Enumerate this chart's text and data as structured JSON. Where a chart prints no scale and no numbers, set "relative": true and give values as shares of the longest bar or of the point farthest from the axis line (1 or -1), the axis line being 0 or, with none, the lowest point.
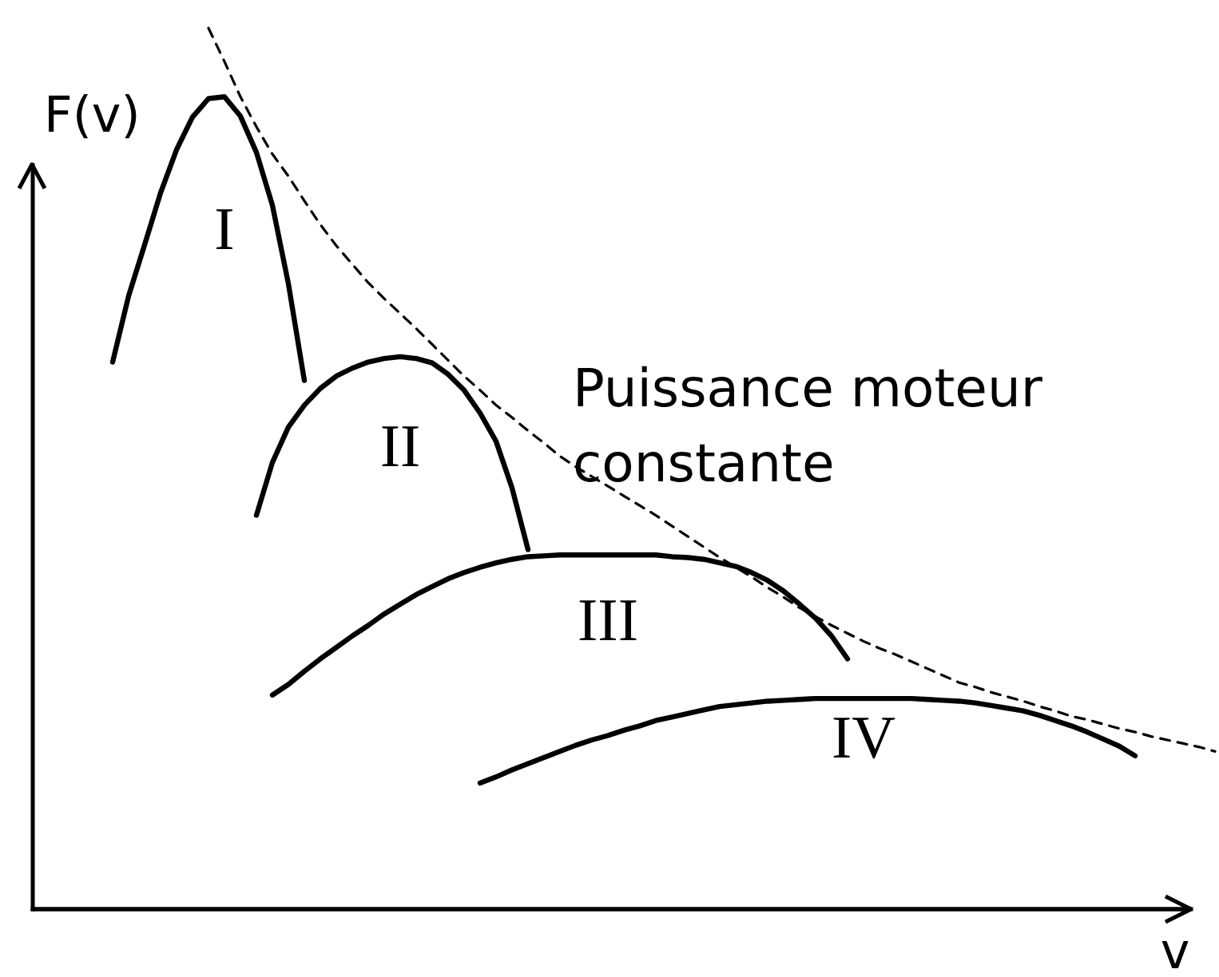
{
  "chart_data": {
    "type": "line",
    "relative": true,
    "xlabel": "v",
    "ylabel": "F(v)",
    "line_style": "solid",
    "categories": [
      null,
      null,
      null,
      null,
      null,
      null,
      null,
      null,
      null,
      null,
      null,
      null,
      null,
      null,
      null,
      null,
      null,
      null,
      null,
      null,
      null,
      null,
      null,
      null,
      null,
      null,
      null,
      null,
      null,
      null,
      null,
      null,
      null,
      null,
      null,
      null,
      null,
      null,
      null,
      null,
      null,
      null,
      null,
      null,
      null,
      null,
      null,
      null,
      null,
      null,
      null,
      null,
      null,
      null,
      null,
      null,
      null,
      null,
      null,
      null,
      null,
      null,
      null,
      null,
      null,
      null,
      null,
      null,
      null,
      null
    ],
    "series": [
      {
        "name": "I",
        "color": "#000000",
        "values": [
          0.621,
          0.696,
          0.754,
          0.813,
          0.862,
          0.899,
          0.92,
          0.922,
          0.9,
          0.859,
          0.799,
          0.71,
          0.6,
          null,
          null,
          null,
          null,
          null,
          null,
          null,
          null,
          null,
          null,
          null,
          null,
          null,
          null,
          null,
          null,
          null,
          null,
          null,
          null,
          null,
          null,
          null,
          null,
          null,
          null,
          null,
          null,
          null,
          null,
          null,
          null,
          null,
          null,
          null,
          null,
          null,
          null,
          null,
          null,
          null,
          null,
          null,
          null,
          null,
          null,
          null,
          null,
          null,
          null,
          null,
          null,
          null,
          null,
          null,
          null,
          null
        ]
      },
      {
        "name": "II",
        "color": "#000000",
        "values": [
          null,
          null,
          null,
          null,
          null,
          null,
          null,
          null,
          null,
          0.447,
          0.507,
          0.547,
          0.572,
          0.591,
          0.605,
          0.614,
          0.621,
          0.625,
          0.627,
          0.625,
          0.62,
          0.607,
          0.589,
          0.563,
          0.531,
          0.478,
          0.408,
          null,
          null,
          null,
          null,
          null,
          null,
          null,
          null,
          null,
          null,
          null,
          null,
          null,
          null,
          null,
          null,
          null,
          null,
          null,
          null,
          null,
          null,
          null,
          null,
          null,
          null,
          null,
          null,
          null,
          null,
          null,
          null,
          null,
          null,
          null,
          null,
          null,
          null,
          null,
          null,
          null,
          null,
          null
        ]
      },
      {
        "name": "III",
        "color": "#000000",
        "values": [
          null,
          null,
          null,
          null,
          null,
          null,
          null,
          null,
          null,
          null,
          0.243,
          0.255,
          0.27,
          0.284,
          0.297,
          0.31,
          0.322,
          0.335,
          0.346,
          0.357,
          0.366,
          0.375,
          0.382,
          0.388,
          0.393,
          0.397,
          0.4,
          0.401,
          0.402,
          0.402,
          0.402,
          0.402,
          0.402,
          0.402,
          0.402,
          0.4,
          0.399,
          0.397,
          0.393,
          0.389,
          0.382,
          0.373,
          0.361,
          0.346,
          0.33,
          0.31,
          0.284,
          null,
          null,
          null,
          null,
          null,
          null,
          null,
          null,
          null,
          null,
          null,
          null,
          null,
          null,
          null,
          null,
          null,
          null,
          null,
          null,
          null,
          null,
          null
        ]
      },
      {
        "name": "IV",
        "color": "#000000",
        "values": [
          null,
          null,
          null,
          null,
          null,
          null,
          null,
          null,
          null,
          null,
          null,
          null,
          null,
          null,
          null,
          null,
          null,
          null,
          null,
          null,
          null,
          null,
          null,
          0.143,
          0.15,
          0.158,
          0.165,
          0.172,
          0.179,
          0.186,
          0.192,
          0.197,
          0.203,
          0.208,
          0.214,
          0.218,
          0.222,
          0.226,
          0.23,
          0.232,
          0.234,
          0.236,
          0.237,
          0.238,
          0.239,
          0.239,
          0.239,
          0.239,
          0.239,
          0.239,
          0.239,
          0.238,
          0.237,
          0.236,
          0.234,
          0.231,
          0.228,
          0.225,
          0.22,
          0.214,
          0.208,
          0.201,
          0.193,
          0.185,
          0.174,
          null,
          null,
          null,
          null,
          null
        ]
      },
      {
        "name": "Puissance moteur constante",
        "color": "#000000",
        "line_style": "dashed",
        "values": [
          null,
          null,
          null,
          null,
          null,
          null,
          1.0,
          0.962,
          0.922,
          0.888,
          0.857,
          0.832,
          0.804,
          0.777,
          0.753,
          0.732,
          0.711,
          0.693,
          0.676,
          0.659,
          0.641,
          0.623,
          0.605,
          0.589,
          0.572,
          0.558,
          0.543,
          0.529,
          0.514,
          0.502,
          0.491,
          0.48,
          0.469,
          0.458,
          0.447,
          0.435,
          0.423,
          0.411,
          0.399,
          0.388,
          0.377,
          0.365,
          0.354,
          0.342,
          0.332,
          0.322,
          0.313,
          0.304,
          0.296,
          0.289,
          0.281,
          0.273,
          0.265,
          0.257,
          0.252,
          0.246,
          0.241,
          0.236,
          0.23,
          0.225,
          0.219,
          0.215,
          0.21,
          0.205,
          0.201,
          0.196,
          0.192,
          0.188,
          0.184,
          0.179
        ]
      }
    ]
  }
}
